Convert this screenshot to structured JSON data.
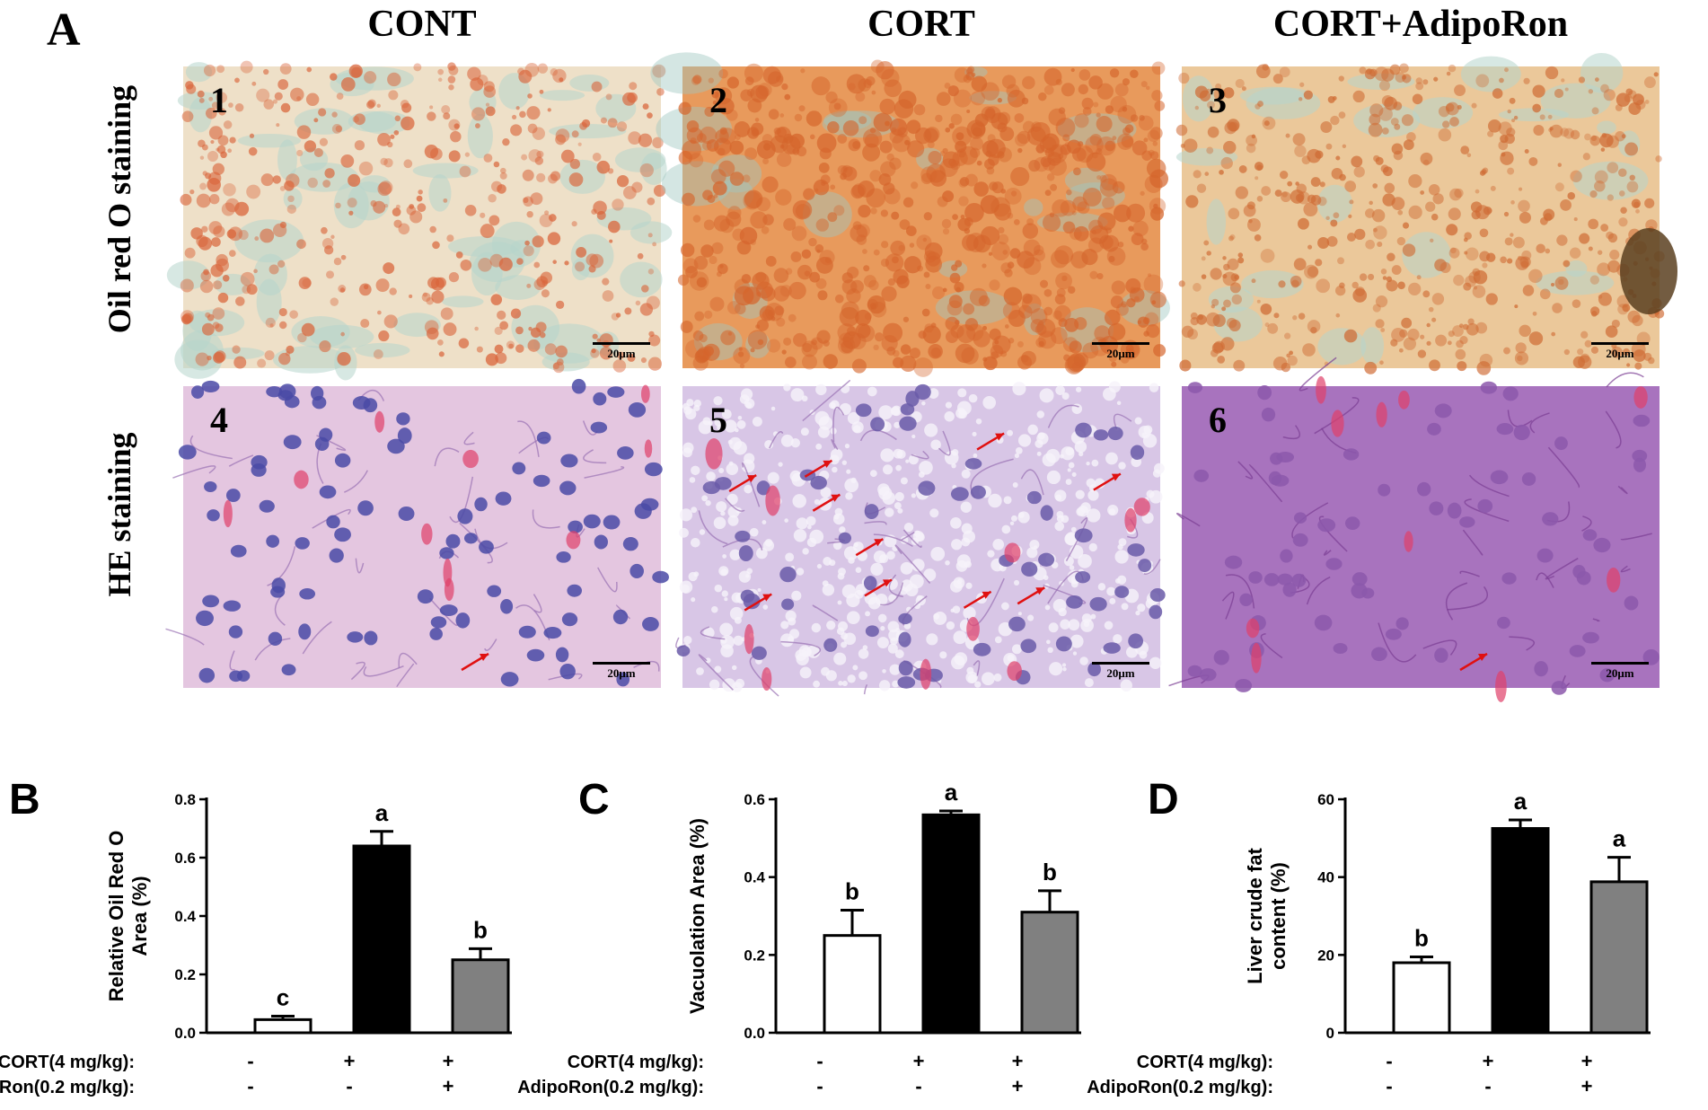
{
  "panel_a": {
    "letter": "A",
    "columns": [
      "CONT",
      "CORT",
      "CORT+AdipoRon"
    ],
    "rows": [
      "Oil red O  staining",
      "HE staining"
    ],
    "images": [
      {
        "num": "1",
        "scale": "20μm"
      },
      {
        "num": "2",
        "scale": "20μm"
      },
      {
        "num": "3",
        "scale": "20μm"
      },
      {
        "num": "4",
        "scale": "20μm"
      },
      {
        "num": "5",
        "scale": "20μm"
      },
      {
        "num": "6",
        "scale": "20μm"
      }
    ]
  },
  "treatments": {
    "cort_label": "CORT(4 mg/kg):",
    "adipo_label": "AdipoRon(0.2 mg/kg):",
    "cort": [
      "-",
      "+",
      "+"
    ],
    "adipo": [
      "-",
      "-",
      "+"
    ]
  },
  "chart_data": [
    {
      "type": "bar",
      "panel": "B",
      "ylabel": [
        "Relative Oil Red O",
        "Area (%)"
      ],
      "ylim": [
        0,
        0.8
      ],
      "yticks": [
        "0.0",
        "0.2",
        "0.4",
        "0.6",
        "0.8"
      ],
      "values": [
        0.045,
        0.64,
        0.25
      ],
      "errors": [
        0.012,
        0.05,
        0.038
      ],
      "letters": [
        "c",
        "a",
        "b"
      ],
      "fills": [
        "#ffffff",
        "#000000",
        "#808080"
      ]
    },
    {
      "type": "bar",
      "panel": "C",
      "ylabel": [
        "Vacuolation Area (%)"
      ],
      "ylim": [
        0,
        0.6
      ],
      "yticks": [
        "0.0",
        "0.2",
        "0.4",
        "0.6"
      ],
      "values": [
        0.25,
        0.56,
        0.31
      ],
      "errors": [
        0.065,
        0.01,
        0.055
      ],
      "letters": [
        "b",
        "a",
        "b"
      ],
      "fills": [
        "#ffffff",
        "#000000",
        "#808080"
      ]
    },
    {
      "type": "bar",
      "panel": "D",
      "ylabel": [
        "Liver crude fat",
        "content (%)"
      ],
      "ylim": [
        0,
        60
      ],
      "yticks": [
        "0",
        "20",
        "40",
        "60"
      ],
      "values": [
        18,
        52.5,
        38.8
      ],
      "errors": [
        1.5,
        2.2,
        6.3
      ],
      "letters": [
        "b",
        "a",
        "a"
      ],
      "fills": [
        "#ffffff",
        "#000000",
        "#808080"
      ]
    }
  ]
}
